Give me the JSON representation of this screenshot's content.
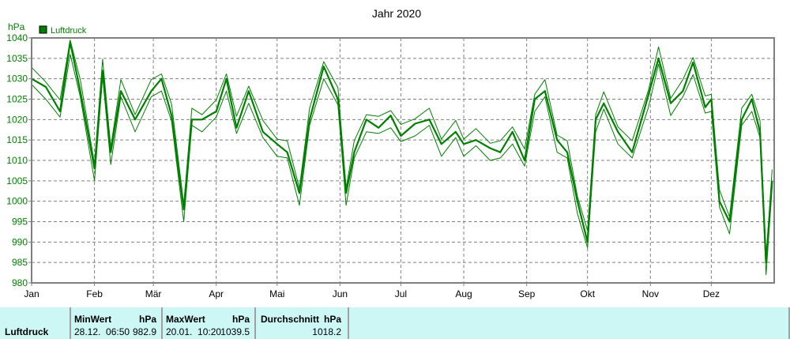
{
  "chart": {
    "title": "Jahr 2020",
    "y_unit": "hPa",
    "legend_label": "Luftdruck",
    "series_color": "#008000",
    "grid_color": "#808080"
  },
  "stats": {
    "series_name": "Luftdruck",
    "min": {
      "header": "MinWert",
      "unit": "hPa",
      "date_time": "28.12.  06:50",
      "value": "982.9"
    },
    "max": {
      "header": "MaxWert",
      "unit": "hPa",
      "date_time": "20.01.  10:20",
      "value": "1039.5"
    },
    "avg": {
      "header": "Durchschnitt",
      "unit": "hPa",
      "value": "1018.2"
    }
  },
  "chart_data": {
    "type": "line",
    "title": "Jahr 2020",
    "xlabel": "",
    "ylabel": "hPa",
    "ylim": [
      980,
      1040
    ],
    "yticks": [
      980,
      985,
      990,
      995,
      1000,
      1005,
      1010,
      1015,
      1020,
      1025,
      1030,
      1035,
      1040
    ],
    "xticks": [
      "Jan",
      "Feb",
      "Mär",
      "Apr",
      "Mai",
      "Jun",
      "Jul",
      "Aug",
      "Sep",
      "Okt",
      "Nov",
      "Dez"
    ],
    "grid": true,
    "legend": [
      "Luftdruck"
    ],
    "legend_position": "top-left",
    "x_day_of_year": [
      1,
      8,
      15,
      20,
      25,
      32,
      36,
      40,
      45,
      52,
      60,
      65,
      70,
      76,
      80,
      85,
      92,
      97,
      102,
      108,
      115,
      122,
      127,
      133,
      138,
      145,
      152,
      156,
      160,
      166,
      172,
      178,
      183,
      190,
      197,
      203,
      210,
      214,
      220,
      227,
      232,
      238,
      244,
      249,
      254,
      260,
      265,
      270,
      275,
      279,
      283,
      290,
      297,
      305,
      310,
      316,
      322,
      327,
      333,
      336,
      340,
      345,
      351,
      356,
      360,
      363,
      366
    ],
    "series": [
      {
        "name": "Luftdruck",
        "values": [
          1030,
          1028,
          1022,
          1039,
          1027,
          1008,
          1032,
          1012,
          1027,
          1020,
          1027,
          1030,
          1021,
          998,
          1020,
          1020,
          1022,
          1030,
          1018,
          1027,
          1017,
          1014,
          1012,
          1002,
          1020,
          1033,
          1025,
          1002,
          1012,
          1020,
          1018,
          1021,
          1016,
          1019,
          1020,
          1014,
          1017,
          1014,
          1015,
          1013,
          1012,
          1017,
          1010,
          1025,
          1027,
          1015,
          1012,
          1000,
          990,
          1020,
          1024,
          1017,
          1012,
          1026,
          1035,
          1024,
          1027,
          1034,
          1023,
          1025,
          1000,
          995,
          1020,
          1025,
          1017,
          985,
          1005
        ]
      }
    ],
    "stats": {
      "min": 982.9,
      "min_time": "28.12. 06:50",
      "max": 1039.5,
      "max_time": "20.01. 10:20",
      "mean": 1018.2
    }
  }
}
